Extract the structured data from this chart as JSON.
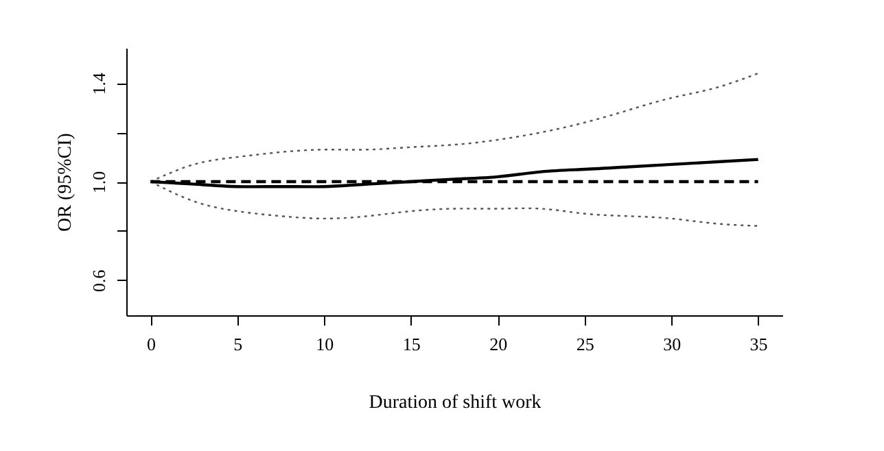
{
  "chart_data": {
    "type": "line",
    "xlabel": "Duration of shift work",
    "ylabel": "OR (95%CI)",
    "xlim": [
      -1.4,
      36.4
    ],
    "ylim": [
      0.457,
      1.543
    ],
    "xticks": [
      0,
      5,
      10,
      15,
      20,
      25,
      30,
      35
    ],
    "yticks": [
      {
        "value": 0.6,
        "label": "0.6"
      },
      {
        "value": 0.8,
        "label": null
      },
      {
        "value": 1.0,
        "label": "1.0"
      },
      {
        "value": 1.2,
        "label": null
      },
      {
        "value": 1.4,
        "label": "1.4"
      }
    ],
    "grid": false,
    "marker": "none",
    "x": [
      0,
      2.5,
      5,
      7.5,
      10,
      12.5,
      15,
      17.5,
      20,
      22.5,
      25,
      27.5,
      30,
      32.5,
      35
    ],
    "series": [
      {
        "color": "#000000",
        "line_style": "solid",
        "values": [
          1.0,
          0.99,
          0.98,
          0.98,
          0.98,
          0.99,
          1.0,
          1.01,
          1.02,
          1.04,
          1.05,
          1.06,
          1.07,
          1.08,
          1.09
        ]
      },
      {
        "color": "#555555",
        "line_style": "dotted",
        "values": [
          1.0,
          1.07,
          1.1,
          1.12,
          1.13,
          1.13,
          1.14,
          1.15,
          1.17,
          1.2,
          1.24,
          1.29,
          1.34,
          1.38,
          1.44
        ]
      },
      {
        "color": "#555555",
        "line_style": "dotted",
        "values": [
          1.0,
          0.92,
          0.88,
          0.86,
          0.85,
          0.86,
          0.88,
          0.89,
          0.89,
          0.89,
          0.87,
          0.86,
          0.85,
          0.83,
          0.82
        ]
      },
      {
        "color": "#000000",
        "line_style": "dashed",
        "x": [
          0,
          35
        ],
        "values": [
          1.0,
          1.0
        ]
      }
    ]
  }
}
